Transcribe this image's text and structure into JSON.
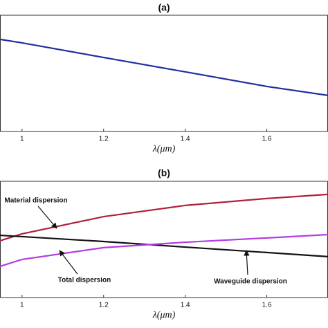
{
  "chart_data": [
    {
      "type": "line",
      "title": "(a)",
      "xlabel": "λ(μm)",
      "x": [
        0.946,
        1.0,
        1.2,
        1.4,
        1.6,
        1.75
      ],
      "series": [
        {
          "color": "#1f2f9e",
          "values": [
            4.93,
            4.74,
            3.96,
            3.19,
            2.41,
            1.93
          ]
        }
      ],
      "xlim": [
        0.946,
        1.75
      ],
      "xticks": [
        1,
        1.2,
        1.4,
        1.6
      ],
      "ylim": [
        0,
        6.22
      ]
    },
    {
      "type": "line",
      "title": "(b)",
      "xlabel": "λ(μm)",
      "x": [
        0.946,
        1.0,
        1.2,
        1.4,
        1.6,
        1.75
      ],
      "series": [
        {
          "color": "#b0203c",
          "values": [
            3.04,
            3.41,
            4.33,
            4.93,
            5.3,
            5.52
          ]
        },
        {
          "color": "#111111",
          "values": [
            3.33,
            3.26,
            3.0,
            2.7,
            2.41,
            2.19
          ]
        },
        {
          "color": "#b43ce0",
          "values": [
            1.67,
            2.04,
            2.67,
            2.96,
            3.19,
            3.37
          ]
        }
      ],
      "annotations": [
        "Material dispersion",
        "Total dispersion",
        "Waveguide dispersion"
      ],
      "xlim": [
        0.946,
        1.75
      ],
      "xticks": [
        1,
        1.2,
        1.4,
        1.6
      ],
      "ylim": [
        0,
        6.22
      ]
    }
  ]
}
